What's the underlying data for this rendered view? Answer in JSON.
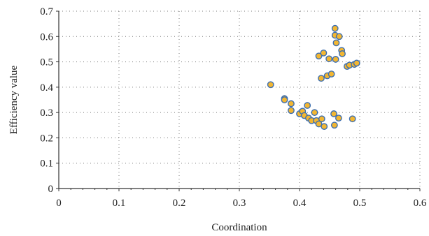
{
  "chart_data": {
    "type": "scatter",
    "xlabel": "Coordination",
    "ylabel": "Efficiency value",
    "xlim": [
      0,
      0.6
    ],
    "ylim": [
      0,
      0.7
    ],
    "x_ticks": [
      "0",
      "0.1",
      "0.2",
      "0.3",
      "0.4",
      "0.5",
      "0.6"
    ],
    "y_ticks": [
      "0",
      "0.1",
      "0.2",
      "0.3",
      "0.4",
      "0.5",
      "0.6",
      "0.7"
    ],
    "grid": true,
    "grid_style": "dotted",
    "marker_fill": "#F2B632",
    "marker_edge": "#3D6FB0",
    "points": [
      {
        "x": 0.352,
        "y": 0.41
      },
      {
        "x": 0.375,
        "y": 0.355
      },
      {
        "x": 0.375,
        "y": 0.35
      },
      {
        "x": 0.386,
        "y": 0.335
      },
      {
        "x": 0.386,
        "y": 0.308
      },
      {
        "x": 0.4,
        "y": 0.295
      },
      {
        "x": 0.405,
        "y": 0.305
      },
      {
        "x": 0.408,
        "y": 0.288
      },
      {
        "x": 0.413,
        "y": 0.328
      },
      {
        "x": 0.415,
        "y": 0.278
      },
      {
        "x": 0.42,
        "y": 0.268
      },
      {
        "x": 0.425,
        "y": 0.3
      },
      {
        "x": 0.428,
        "y": 0.268
      },
      {
        "x": 0.432,
        "y": 0.255
      },
      {
        "x": 0.437,
        "y": 0.275
      },
      {
        "x": 0.441,
        "y": 0.245
      },
      {
        "x": 0.457,
        "y": 0.295
      },
      {
        "x": 0.458,
        "y": 0.25
      },
      {
        "x": 0.465,
        "y": 0.278
      },
      {
        "x": 0.488,
        "y": 0.275
      },
      {
        "x": 0.436,
        "y": 0.435
      },
      {
        "x": 0.446,
        "y": 0.445
      },
      {
        "x": 0.453,
        "y": 0.452
      },
      {
        "x": 0.432,
        "y": 0.523
      },
      {
        "x": 0.44,
        "y": 0.535
      },
      {
        "x": 0.449,
        "y": 0.512
      },
      {
        "x": 0.46,
        "y": 0.51
      },
      {
        "x": 0.459,
        "y": 0.632
      },
      {
        "x": 0.459,
        "y": 0.605
      },
      {
        "x": 0.466,
        "y": 0.6
      },
      {
        "x": 0.461,
        "y": 0.575
      },
      {
        "x": 0.47,
        "y": 0.545
      },
      {
        "x": 0.471,
        "y": 0.532
      },
      {
        "x": 0.479,
        "y": 0.482
      },
      {
        "x": 0.483,
        "y": 0.487
      },
      {
        "x": 0.491,
        "y": 0.49
      },
      {
        "x": 0.495,
        "y": 0.495
      }
    ]
  }
}
